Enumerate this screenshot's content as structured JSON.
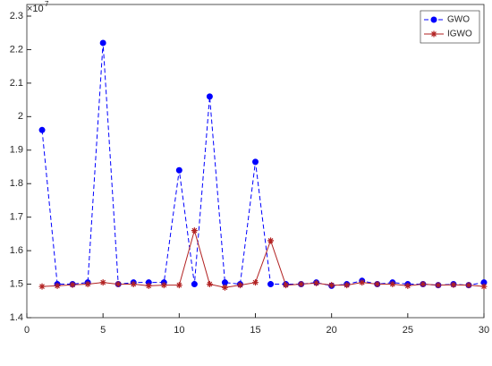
{
  "chart_data": {
    "type": "line",
    "axis_multiplier": "×10",
    "axis_exponent": "7",
    "x": [
      1,
      2,
      3,
      4,
      5,
      6,
      7,
      8,
      9,
      10,
      11,
      12,
      13,
      14,
      15,
      16,
      17,
      18,
      19,
      20,
      21,
      22,
      23,
      24,
      25,
      26,
      27,
      28,
      29,
      30
    ],
    "series": [
      {
        "name": "GWO",
        "color": "#0000ff",
        "values": [
          1.96,
          1.5,
          1.5,
          1.505,
          2.22,
          1.5,
          1.505,
          1.505,
          1.505,
          1.84,
          1.5,
          2.06,
          1.505,
          1.5,
          1.865,
          1.5,
          1.5,
          1.5,
          1.505,
          1.495,
          1.5,
          1.51,
          1.5,
          1.505,
          1.5,
          1.5,
          1.497,
          1.5,
          1.497,
          1.505
        ]
      },
      {
        "name": "IGWO",
        "color": "#b22222",
        "values": [
          1.493,
          1.495,
          1.498,
          1.5,
          1.505,
          1.5,
          1.5,
          1.495,
          1.497,
          1.497,
          1.66,
          1.5,
          1.49,
          1.497,
          1.505,
          1.63,
          1.497,
          1.5,
          1.503,
          1.497,
          1.497,
          1.505,
          1.5,
          1.5,
          1.495,
          1.5,
          1.497,
          1.498,
          1.497,
          1.493
        ]
      }
    ],
    "xlim": [
      0,
      30
    ],
    "xticks": [
      0,
      5,
      10,
      15,
      20,
      25,
      30
    ],
    "ylim": [
      1.4,
      2.3
    ],
    "yticks": [
      1.4,
      1.5,
      1.6,
      1.7,
      1.8,
      1.9,
      2,
      2.1,
      2.2,
      2.3
    ],
    "legend": "top-right"
  }
}
